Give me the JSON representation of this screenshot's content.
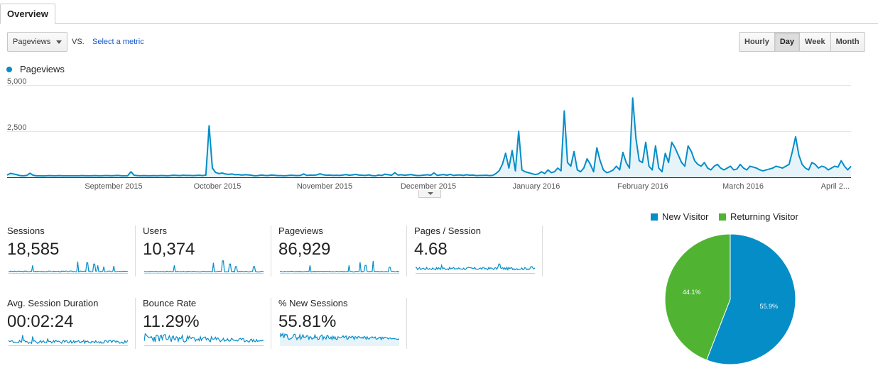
{
  "tab": {
    "label": "Overview"
  },
  "toolbar": {
    "metric_selected": "Pageviews",
    "vs_label": "VS.",
    "select_metric_label": "Select a metric"
  },
  "granularity": {
    "options": [
      "Hourly",
      "Day",
      "Week",
      "Month"
    ],
    "active": "Day"
  },
  "chart_legend": {
    "label": "Pageviews",
    "color": "#058dc7"
  },
  "chart_data": [
    {
      "type": "area",
      "title": "",
      "xlabel": "",
      "ylabel": "",
      "ylim": [
        0,
        5000
      ],
      "y_ticks": [
        "5,000",
        "2,500"
      ],
      "x_tick_labels": [
        "September 2015",
        "October 2015",
        "November 2015",
        "December 2015",
        "January 2016",
        "February 2016",
        "March 2016",
        "April 2..."
      ],
      "grid": true,
      "series": [
        {
          "name": "Pageviews",
          "color": "#058dc7",
          "values": [
            120,
            210,
            180,
            140,
            90,
            80,
            100,
            220,
            110,
            80,
            80,
            70,
            80,
            90,
            80,
            80,
            90,
            80,
            80,
            80,
            80,
            80,
            80,
            90,
            80,
            80,
            80,
            90,
            80,
            80,
            90,
            90,
            80,
            90,
            100,
            80,
            80,
            80,
            300,
            110,
            90,
            80,
            90,
            80,
            80,
            90,
            80,
            90,
            90,
            80,
            90,
            110,
            100,
            90,
            110,
            100,
            100,
            90,
            100,
            110,
            90,
            120,
            2800,
            500,
            260,
            200,
            230,
            180,
            160,
            180,
            140,
            150,
            120,
            140,
            130,
            110,
            80,
            90,
            120,
            100,
            90,
            120,
            110,
            90,
            90,
            80,
            90,
            110,
            100,
            90,
            100,
            180,
            100,
            120,
            110,
            130,
            190,
            140,
            110,
            120,
            100,
            110,
            100,
            120,
            150,
            110,
            130,
            160,
            120,
            110,
            100,
            130,
            90,
            80,
            120,
            100,
            170,
            140,
            110,
            250,
            120,
            140,
            110,
            130,
            150,
            110,
            90,
            100,
            120,
            140,
            110,
            240,
            100,
            130,
            150,
            110,
            160,
            100,
            120,
            130,
            100,
            140,
            110,
            120,
            90,
            100,
            100,
            110,
            90,
            100,
            200,
            350,
            700,
            1300,
            500,
            1450,
            350,
            2500,
            400,
            300,
            250,
            200,
            150,
            180,
            300,
            200,
            400,
            250,
            300,
            500,
            350,
            3600,
            800,
            600,
            1400,
            400,
            300,
            500,
            1000,
            700,
            300,
            1600,
            900,
            400,
            250,
            300,
            400,
            600,
            400,
            1350,
            800,
            500,
            4300,
            2100,
            900,
            800,
            1900,
            600,
            400,
            1700,
            500,
            300,
            1300,
            800,
            1900,
            1600,
            1200,
            800,
            600,
            1700,
            1400,
            900,
            700,
            600,
            800,
            500,
            400,
            600,
            700,
            500,
            400,
            500,
            600,
            400,
            450,
            700,
            500,
            400,
            600,
            550,
            500,
            400,
            350,
            400,
            450,
            500,
            600,
            550,
            500,
            600,
            700,
            1400,
            2200,
            1200,
            700,
            500,
            400,
            800,
            700,
            500,
            600,
            550,
            400,
            500,
            600,
            550,
            900,
            600,
            400,
            600
          ]
        }
      ]
    },
    {
      "type": "pie",
      "title": "",
      "labels": [
        "New Visitor",
        "Returning Visitor"
      ],
      "values": [
        55.9,
        44.1
      ],
      "value_labels": [
        "55.9%",
        "44.1%"
      ],
      "colors": [
        "#058dc7",
        "#50b432"
      ],
      "legend": "top"
    }
  ],
  "metrics": [
    {
      "label": "Sessions",
      "value": "18,585",
      "spark": "sessions"
    },
    {
      "label": "Users",
      "value": "10,374",
      "spark": "users"
    },
    {
      "label": "Pageviews",
      "value": "86,929",
      "spark": "pageviews"
    },
    {
      "label": "Pages / Session",
      "value": "4.68",
      "spark": "pps"
    },
    {
      "label": "Avg. Session Duration",
      "value": "00:02:24",
      "spark": "duration"
    },
    {
      "label": "Bounce Rate",
      "value": "11.29%",
      "spark": "bounce"
    },
    {
      "label": "% New Sessions",
      "value": "55.81%",
      "spark": "newsessions"
    }
  ]
}
